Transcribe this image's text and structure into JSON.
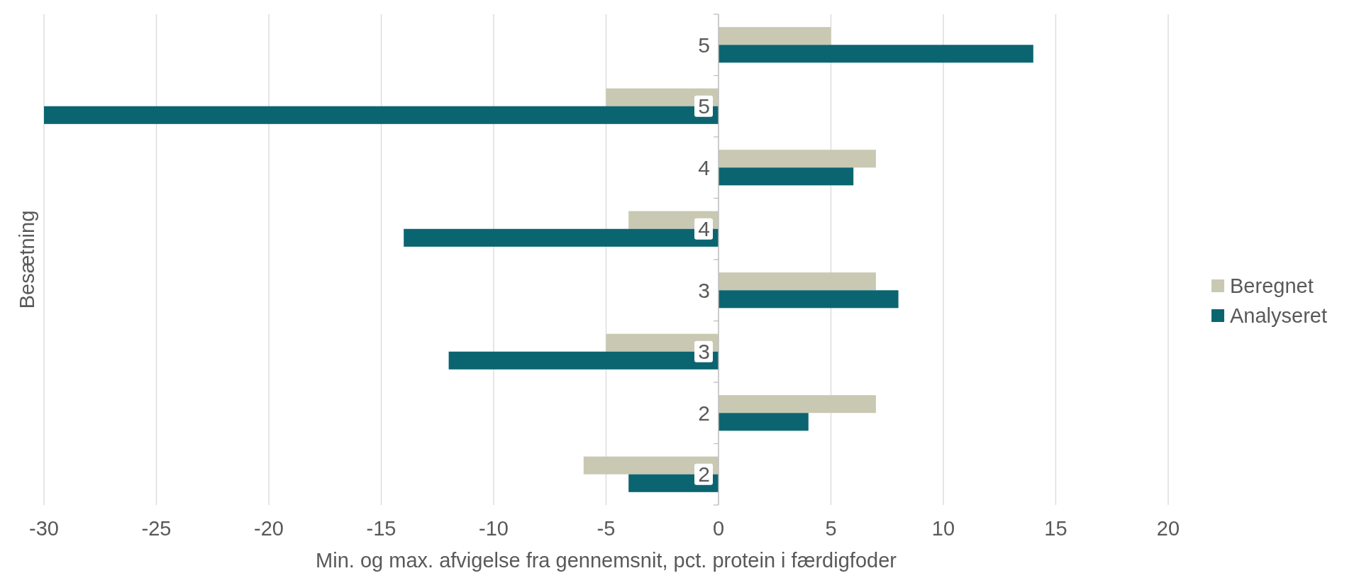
{
  "chart_data": {
    "type": "bar",
    "orientation": "horizontal",
    "xlabel": "Min. og max. afvigelse fra gennemsnit, pct. protein i færdigfoder",
    "ylabel": "Besætning",
    "categories": [
      "5",
      "5",
      "4",
      "4",
      "3",
      "3",
      "2",
      "2"
    ],
    "series": [
      {
        "name": "Beregnet",
        "color": "#c9c8b2",
        "values": [
          5,
          -5,
          7,
          -4,
          7,
          -5,
          7,
          -6
        ]
      },
      {
        "name": "Analyseret",
        "color": "#0b6571",
        "values": [
          14,
          -30,
          6,
          -14,
          8,
          -12,
          4,
          -4
        ]
      }
    ],
    "xlim": [
      -30,
      20
    ],
    "xticks": [
      -30,
      -25,
      -20,
      -15,
      -10,
      -5,
      0,
      5,
      10,
      15,
      20
    ],
    "grid": "x",
    "legend": "right"
  }
}
